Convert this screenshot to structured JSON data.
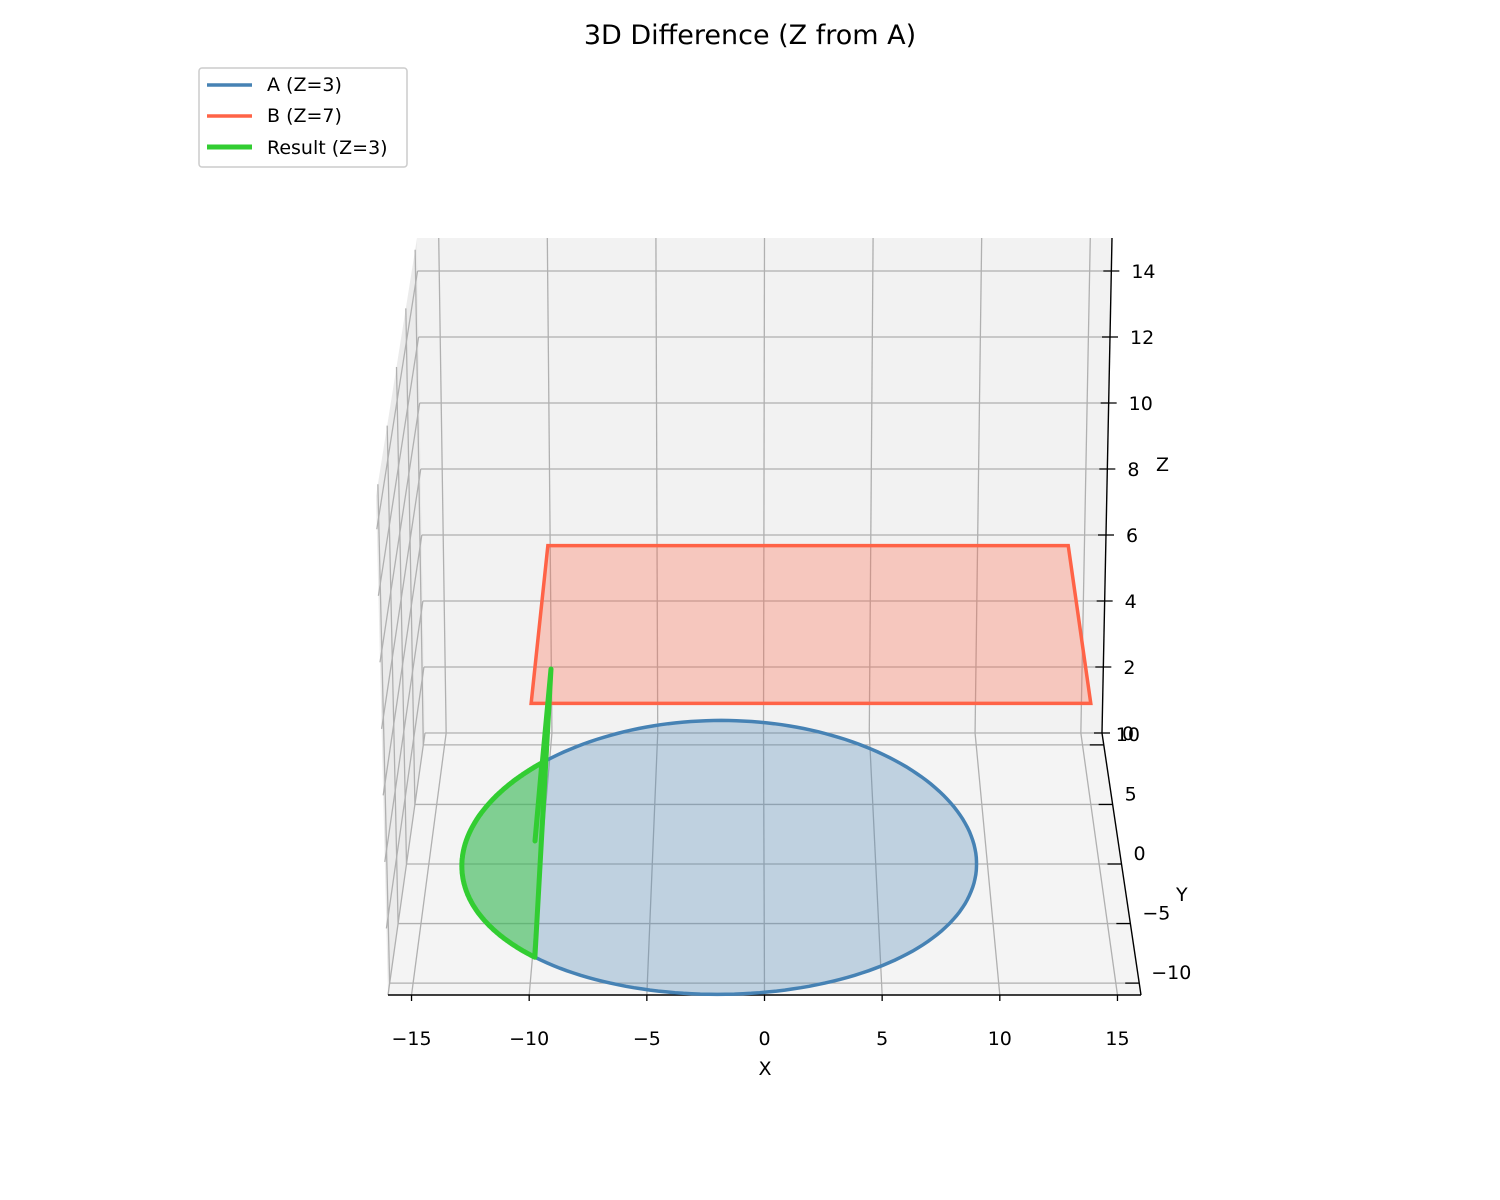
{
  "chart_data": {
    "type": "3d-polygon",
    "title": "3D Difference (Z from A)",
    "xlabel": "X",
    "ylabel": "Y",
    "zlabel": "Z",
    "xlim": [
      -16,
      16
    ],
    "ylim": [
      -11,
      11
    ],
    "zlim": [
      0,
      15
    ],
    "x_ticks": [
      -15,
      -10,
      -5,
      0,
      5,
      10,
      15
    ],
    "x_tick_labels": [
      "−15",
      "−10",
      "−5",
      "0",
      "5",
      "10",
      "15"
    ],
    "y_ticks": [
      -10,
      -5,
      0,
      5,
      10
    ],
    "y_tick_labels": [
      "−10",
      "−5",
      "0",
      "5",
      "10"
    ],
    "z_ticks": [
      0,
      2,
      4,
      6,
      8,
      10,
      12,
      14
    ],
    "z_tick_labels": [
      "0",
      "2",
      "4",
      "6",
      "8",
      "10",
      "12",
      "14"
    ],
    "grid": true,
    "legend_position": "upper-left",
    "series": [
      {
        "name": "A (Z=3)",
        "color": "#4682b4",
        "shape": "circle",
        "center": [
          -2,
          0
        ],
        "radius": 11.5,
        "z": 3
      },
      {
        "name": "B (Z=7)",
        "color": "#ff6347",
        "shape": "rectangle",
        "x_range": [
          -10,
          14
        ],
        "y_range": [
          -8,
          8
        ],
        "z": 7
      },
      {
        "name": "Result (Z=3)",
        "color": "#32cd32",
        "shape": "difference A minus B",
        "z": 3
      }
    ]
  }
}
